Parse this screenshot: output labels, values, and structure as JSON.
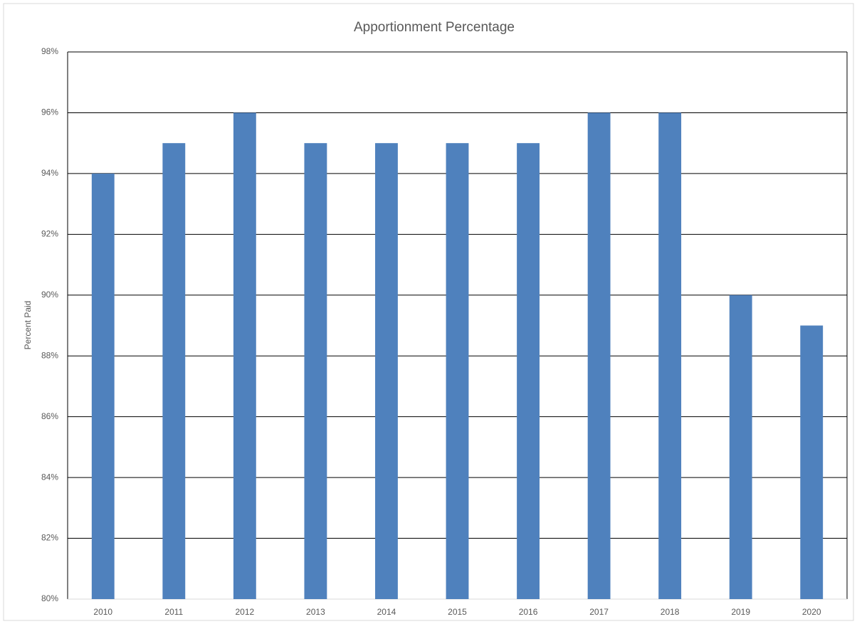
{
  "chart_data": {
    "type": "bar",
    "title": "Apportionment Percentage",
    "y_label": "Percent Paid",
    "categories": [
      "2010",
      "2011",
      "2012",
      "2013",
      "2014",
      "2015",
      "2016",
      "2017",
      "2018",
      "2019",
      "2020"
    ],
    "values": [
      94,
      95,
      96,
      95,
      95,
      95,
      95,
      96,
      96,
      90,
      89
    ],
    "color": "#4f81bd",
    "ylim": [
      80,
      98
    ],
    "yticks": [
      {
        "value": 80,
        "label": "80%"
      },
      {
        "value": 82,
        "label": "82%"
      },
      {
        "value": 84,
        "label": "84%"
      },
      {
        "value": 86,
        "label": "86%"
      },
      {
        "value": 88,
        "label": "88%"
      },
      {
        "value": 90,
        "label": "90%"
      },
      {
        "value": 92,
        "label": "92%"
      },
      {
        "value": 94,
        "label": "94%"
      },
      {
        "value": 96,
        "label": "96%"
      },
      {
        "value": 98,
        "label": "98%"
      }
    ],
    "grid": true
  }
}
